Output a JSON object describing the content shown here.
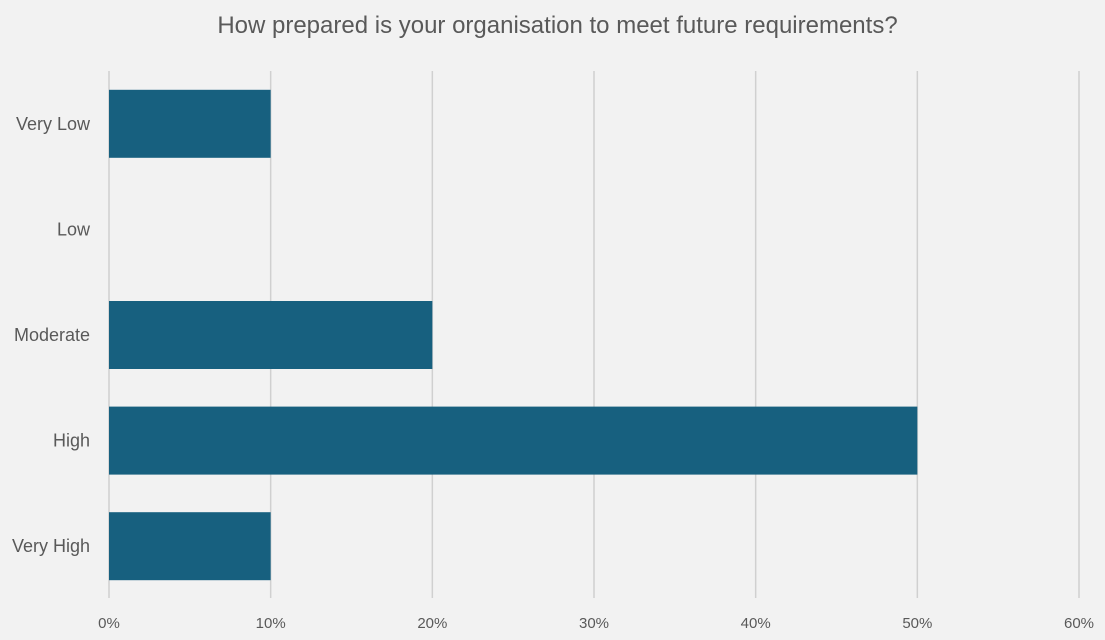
{
  "chart_data": {
    "type": "bar",
    "orientation": "horizontal",
    "title": "How prepared is your organisation to meet future requirements?",
    "xlabel": "",
    "ylabel": "",
    "categories": [
      "Very Low",
      "Low",
      "Moderate",
      "High",
      "Very High"
    ],
    "values": [
      10,
      0,
      20,
      50,
      10
    ],
    "xlim": [
      0,
      60
    ],
    "x_ticks": [
      "0%",
      "10%",
      "20%",
      "30%",
      "40%",
      "50%",
      "60%"
    ],
    "grid": "vertical",
    "legend": "none",
    "bar_color": "#17607f",
    "grid_color": "#d0d0d0",
    "background_color": "#f2f2f2"
  }
}
